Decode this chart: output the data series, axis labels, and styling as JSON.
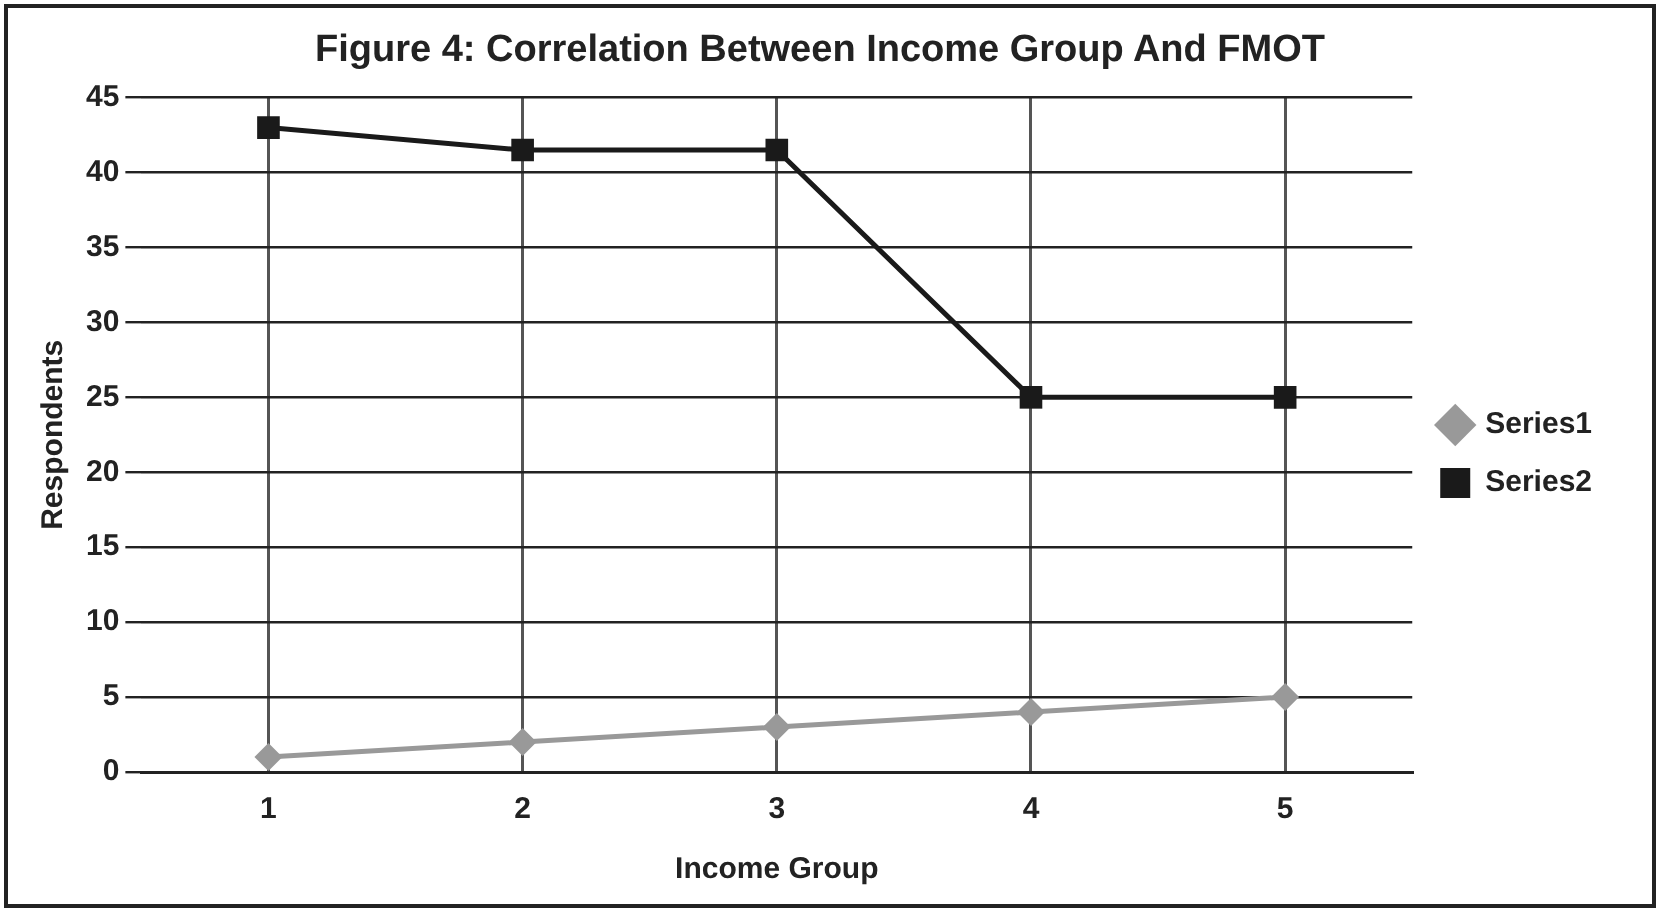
{
  "chart_data": {
    "type": "line",
    "title": "Figure 4: Correlation Between Income Group And FMOT",
    "xlabel": "Income Group",
    "ylabel": "Respondents",
    "categories": [
      "1",
      "2",
      "3",
      "4",
      "5"
    ],
    "series": [
      {
        "name": "Series1",
        "color": "#999999",
        "marker": "diamond",
        "values": [
          1,
          2,
          3,
          4,
          5
        ]
      },
      {
        "name": "Series2",
        "color": "#1a1a1a",
        "marker": "square",
        "values": [
          43,
          41.5,
          41.5,
          25,
          25
        ]
      }
    ],
    "ylim": [
      0,
      45
    ],
    "yticks": [
      0,
      5,
      10,
      15,
      20,
      25,
      30,
      35,
      40,
      45
    ],
    "grid": true,
    "legend": "right"
  }
}
